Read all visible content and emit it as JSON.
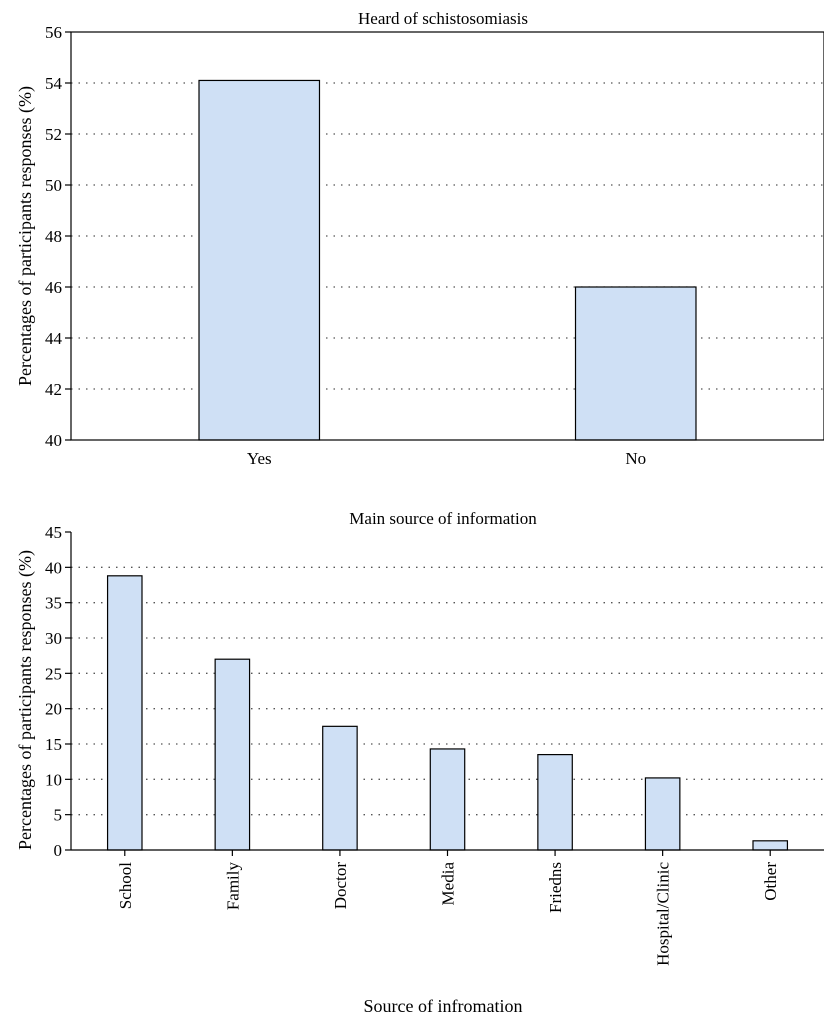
{
  "colors": {
    "bar_fill": "#cfe0f5",
    "bar_stroke": "#000000",
    "grid": "#555555"
  },
  "chart_data": [
    {
      "type": "bar",
      "title": "Heard of schistosomiasis",
      "categories": [
        "Yes",
        "No"
      ],
      "values": [
        54.1,
        46.0
      ],
      "ylabel": "Percentages of participants responses (%)",
      "xlabel": "",
      "ylim": [
        40,
        56
      ],
      "yticks": [
        40,
        42,
        44,
        46,
        48,
        50,
        52,
        54,
        56
      ],
      "grid": "horizontal dotted",
      "legend": "none"
    },
    {
      "type": "bar",
      "title": "Main source of information",
      "categories": [
        "School",
        "Family",
        "Doctor",
        "Media",
        "Friedns",
        "Hospital/Clinic",
        "Other"
      ],
      "values": [
        38.8,
        27.0,
        17.5,
        14.3,
        13.5,
        10.2,
        1.3
      ],
      "ylabel": "Percentages of participants responses (%)",
      "xlabel": "Source of infromation",
      "ylim": [
        0,
        45
      ],
      "yticks": [
        0,
        5,
        10,
        15,
        20,
        25,
        30,
        35,
        40,
        45
      ],
      "grid": "horizontal dotted",
      "legend": "none",
      "xtick_rotation": "vertical"
    }
  ]
}
